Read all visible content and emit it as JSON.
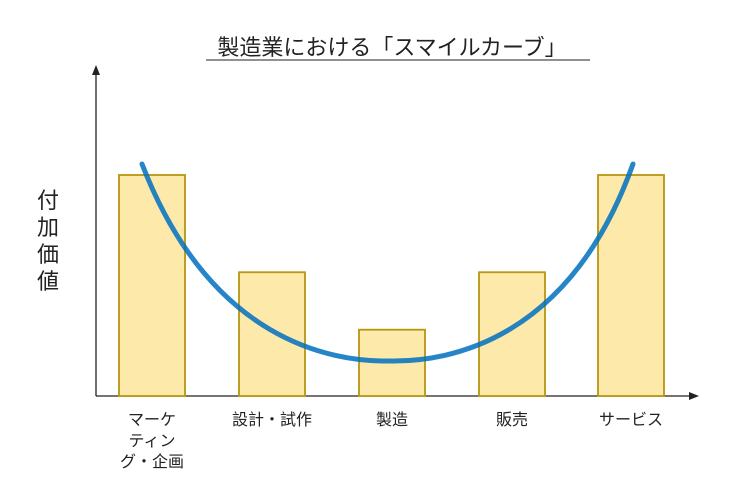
{
  "title": "製造業における「スマイルカーブ」",
  "ylabel": "付加価値",
  "colors": {
    "bar_fill": "#fde9aa",
    "bar_stroke": "#b8960f",
    "curve": "#0070c0",
    "axis": "#222222"
  },
  "chart_data": {
    "type": "bar",
    "title": "製造業における「スマイルカーブ」",
    "xlabel": "",
    "ylabel": "付加価値",
    "categories": [
      "マーケティング・企画",
      "設計・試作",
      "製造",
      "販売",
      "サービス"
    ],
    "category_lines": [
      [
        "マーケ",
        "ティン",
        "グ・企画"
      ],
      [
        "設計・試作"
      ],
      [
        "製造"
      ],
      [
        "販売"
      ],
      [
        "サービス"
      ]
    ],
    "values": [
      1.0,
      0.56,
      0.3,
      0.56,
      1.0
    ],
    "curve": "smile (U-shaped) curve overlaid on bars"
  }
}
